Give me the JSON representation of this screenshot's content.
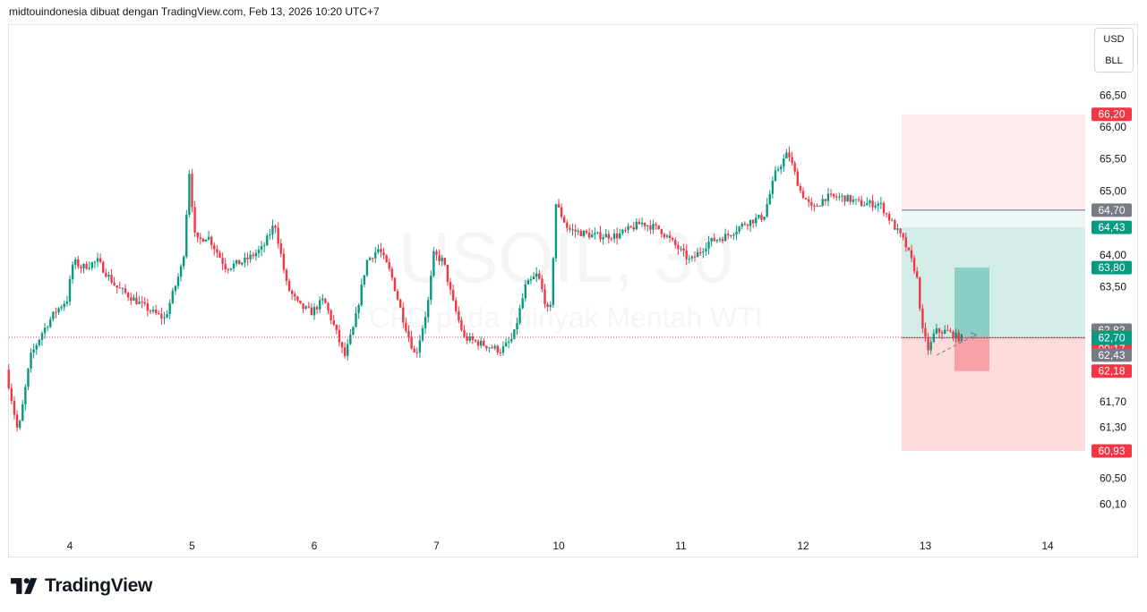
{
  "header": {
    "attribution": "midtouindonesia dibuat dengan TradingView.com, Feb 13, 2026 10:20 UTC+7"
  },
  "unit_selector": {
    "currency": "USD",
    "unit": "BLL"
  },
  "watermark": {
    "symbol": "USOIL, 30",
    "description": "CFD pada Minyak Mentah WTI"
  },
  "footer": {
    "brand": "TradingView"
  },
  "colors": {
    "up": "#089981",
    "down": "#f23645",
    "profit_zone": "#089981",
    "loss_zone": "#f23645",
    "price_line": "#f23645",
    "axis_text": "#131722",
    "gray_tag": "#787b86"
  },
  "chart_data": {
    "type": "candlestick",
    "interval": "30",
    "y_axis": {
      "ticks": [
        "66,50",
        "66,00",
        "65,50",
        "65,00",
        "64,00",
        "63,50",
        "61,70",
        "61,30",
        "60,50",
        "60,10"
      ],
      "tick_values": [
        66.5,
        66.0,
        65.5,
        65.0,
        64.0,
        63.5,
        61.7,
        61.3,
        60.5,
        60.1
      ],
      "range": [
        59.85,
        66.8
      ]
    },
    "x_axis": {
      "labels": [
        "4",
        "5",
        "6",
        "7",
        "10",
        "11",
        "12",
        "13",
        "14"
      ],
      "label_positions_days": [
        0,
        1,
        2,
        3,
        4,
        5,
        6,
        7,
        8
      ]
    },
    "ohlc_path_days": [
      [
        -0.5,
        62.2
      ],
      [
        -0.4,
        61.2
      ],
      [
        -0.3,
        62.4
      ],
      [
        -0.2,
        62.8
      ],
      [
        -0.1,
        63.1
      ],
      [
        0.0,
        63.3
      ],
      [
        0.05,
        63.9
      ],
      [
        0.12,
        63.8
      ],
      [
        0.25,
        63.9
      ],
      [
        0.4,
        63.5
      ],
      [
        0.55,
        63.3
      ],
      [
        0.7,
        63.1
      ],
      [
        0.8,
        63.0
      ],
      [
        0.95,
        63.9
      ],
      [
        1.0,
        65.3
      ],
      [
        1.05,
        64.2
      ],
      [
        1.15,
        64.3
      ],
      [
        1.3,
        63.8
      ],
      [
        1.45,
        63.9
      ],
      [
        1.6,
        64.1
      ],
      [
        1.7,
        64.5
      ],
      [
        1.8,
        63.5
      ],
      [
        1.9,
        63.2
      ],
      [
        2.0,
        63.1
      ],
      [
        2.1,
        63.3
      ],
      [
        2.2,
        62.8
      ],
      [
        2.27,
        62.4
      ],
      [
        2.35,
        62.9
      ],
      [
        2.45,
        63.9
      ],
      [
        2.55,
        64.1
      ],
      [
        2.65,
        63.7
      ],
      [
        2.75,
        63.0
      ],
      [
        2.85,
        62.4
      ],
      [
        2.95,
        63.2
      ],
      [
        3.0,
        64.0
      ],
      [
        3.08,
        63.9
      ],
      [
        3.15,
        63.3
      ],
      [
        3.25,
        62.7
      ],
      [
        3.4,
        62.6
      ],
      [
        3.55,
        62.5
      ],
      [
        3.65,
        62.7
      ],
      [
        3.75,
        63.5
      ],
      [
        3.85,
        63.7
      ],
      [
        3.95,
        63.0
      ],
      [
        4.0,
        64.8
      ],
      [
        4.1,
        64.4
      ],
      [
        4.3,
        64.3
      ],
      [
        4.5,
        64.3
      ],
      [
        4.7,
        64.5
      ],
      [
        4.85,
        64.4
      ],
      [
        5.0,
        64.1
      ],
      [
        5.1,
        63.9
      ],
      [
        5.25,
        64.2
      ],
      [
        5.4,
        64.3
      ],
      [
        5.55,
        64.5
      ],
      [
        5.7,
        64.6
      ],
      [
        5.8,
        65.3
      ],
      [
        5.9,
        65.6
      ],
      [
        6.0,
        65.0
      ],
      [
        6.1,
        64.7
      ],
      [
        6.2,
        64.9
      ],
      [
        6.35,
        64.9
      ],
      [
        6.5,
        64.8
      ],
      [
        6.65,
        64.8
      ],
      [
        6.75,
        64.5
      ],
      [
        6.85,
        64.2
      ],
      [
        6.95,
        63.7
      ],
      [
        7.0,
        62.8
      ],
      [
        7.05,
        62.5
      ],
      [
        7.1,
        62.8
      ],
      [
        7.2,
        62.8
      ],
      [
        7.3,
        62.7
      ]
    ],
    "position_tool": {
      "type": "long",
      "target_outer": 66.2,
      "entry_outer": 64.43,
      "stop_outer": 60.93,
      "box_top_line": 64.7,
      "target_inner": 63.8,
      "entry_inner": 62.71,
      "stop_inner": 62.43,
      "horizontal_line": 62.7
    },
    "price_labels": [
      {
        "text": "66,20",
        "value": 66.2,
        "color": "#f23645"
      },
      {
        "text": "64,70",
        "value": 64.7,
        "color": "#787b86"
      },
      {
        "text": "64,43",
        "value": 64.43,
        "color": "#089981"
      },
      {
        "text": "63,80",
        "value": 63.8,
        "color": "#089981"
      },
      {
        "text": "62,82",
        "value": 62.82,
        "color": "#787b86"
      },
      {
        "text": "62,71",
        "value": 62.71,
        "color": "#f23645",
        "countdown": "09:17"
      },
      {
        "text": "62,70",
        "value": 62.7,
        "color": "#089981"
      },
      {
        "text": "62,43",
        "value": 62.43,
        "color": "#787b86"
      },
      {
        "text": "62,18",
        "value": 62.18,
        "color": "#f23645"
      },
      {
        "text": "60,93",
        "value": 60.93,
        "color": "#f23645"
      }
    ],
    "last_price": 62.71
  }
}
